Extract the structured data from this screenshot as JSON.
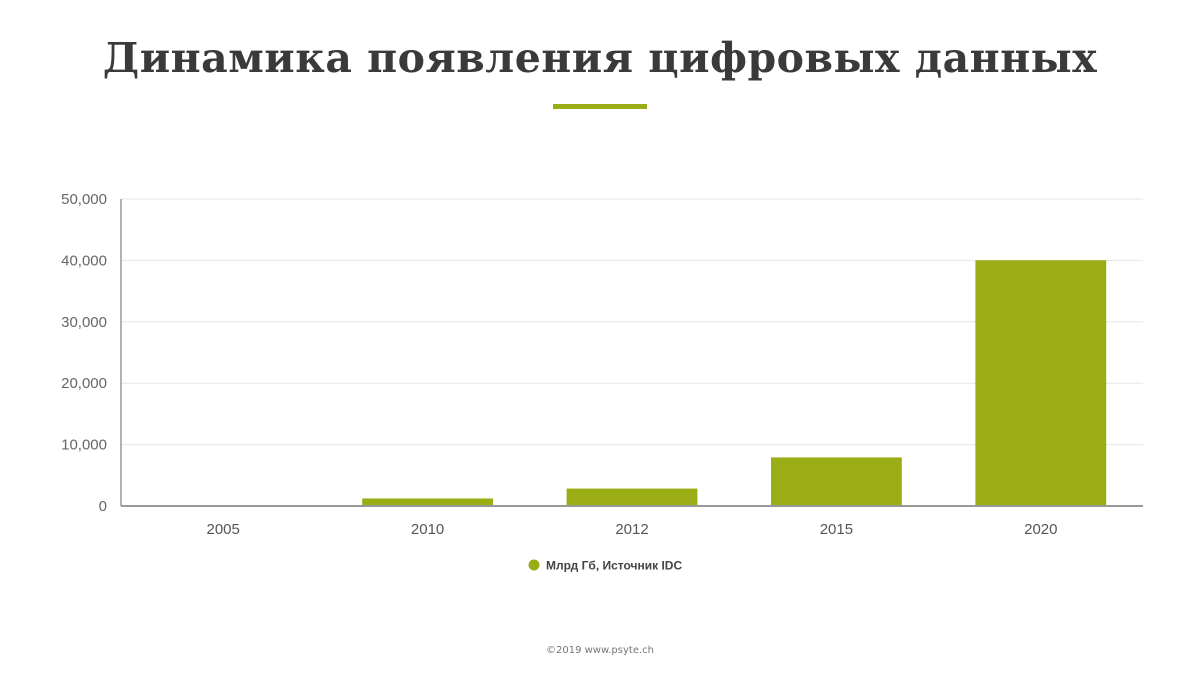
{
  "title": "Динамика появления цифровых данных",
  "accent_color": "#9aad14",
  "footer": "©2019 www.psyte.ch",
  "chart_data": {
    "type": "bar",
    "categories": [
      "2005",
      "2010",
      "2012",
      "2015",
      "2020"
    ],
    "series": [
      {
        "name": "Млрд Гб, Источник IDC",
        "values": [
          130,
          1227,
          2837,
          7910,
          40026
        ]
      }
    ],
    "ylim": [
      0,
      50000
    ],
    "yticks": [
      0,
      10000,
      20000,
      30000,
      40000,
      50000
    ],
    "ytick_labels": [
      "0",
      "10,000",
      "20,000",
      "30,000",
      "40,000",
      "50,000"
    ],
    "grid": true,
    "legend_position": "bottom-center",
    "color": "#9aad14"
  }
}
